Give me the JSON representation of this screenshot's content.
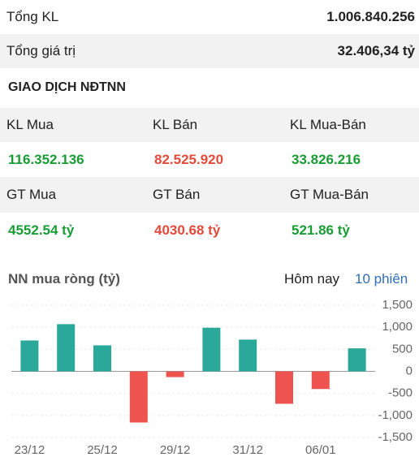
{
  "summary": {
    "rows": [
      [
        "Tổng KL",
        "1.006.840.256"
      ],
      [
        "Tổng giá trị",
        "32.406,34 tỷ"
      ]
    ]
  },
  "section_title": "GIAO DỊCH NĐTNN",
  "table": {
    "rows": [
      [
        "KL Mua",
        "KL Bán",
        "KL Mua-Bán"
      ],
      [
        "116.352.136",
        "82.525.920",
        "33.826.216"
      ],
      [
        "GT Mua",
        "GT Bán",
        "GT Mua-Bán"
      ],
      [
        "4552.54 tỷ",
        "4030.68 tỷ",
        "521.86 tỷ"
      ]
    ]
  },
  "tabs": [
    "Hôm nay",
    "10 phiên"
  ],
  "chart_data": {
    "type": "bar",
    "title": "NN mua ròng (tỷ)",
    "categories": [
      "23/12",
      null,
      "25/12",
      null,
      "29/12",
      null,
      "31/12",
      null,
      "06/01",
      null
    ],
    "values": [
      700,
      1070,
      590,
      -1160,
      -130,
      990,
      720,
      -735,
      -400,
      521.86
    ],
    "color_positive": "#2aa89a",
    "color_negative": "#ef5350",
    "ylim": [
      -1500,
      1500
    ],
    "yticks": [
      {
        "value": 1500,
        "label": "1,500"
      },
      {
        "value": 1000,
        "label": "1,000"
      },
      500,
      0,
      -500,
      {
        "value": -1000,
        "label": "-1,000"
      },
      {
        "value": -1500,
        "label": "-1,500"
      }
    ],
    "grid": true
  }
}
